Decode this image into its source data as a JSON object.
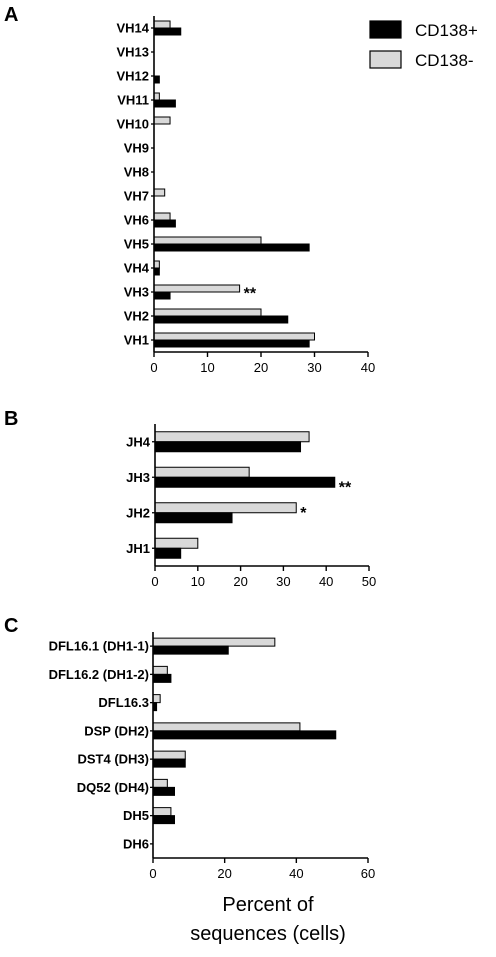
{
  "legend": {
    "entries": [
      {
        "name": "CD138+",
        "color": "#000000"
      },
      {
        "name": "CD138-",
        "color": "#d9d9d9"
      }
    ],
    "placement": "top-right"
  },
  "xlabel": {
    "line1": "Percent of",
    "line2": "sequences (cells)"
  },
  "chart_data": [
    {
      "panel": "A",
      "type": "bar",
      "orientation": "horizontal",
      "categories": [
        "VH14",
        "VH13",
        "VH12",
        "VH11",
        "VH10",
        "VH9",
        "VH8",
        "VH7",
        "VH6",
        "VH5",
        "VH4",
        "VH3",
        "VH2",
        "VH1"
      ],
      "series": [
        {
          "name": "CD138-",
          "color": "#d9d9d9",
          "values": [
            3,
            0,
            0,
            1,
            3,
            0,
            0,
            2,
            3,
            20,
            1,
            16,
            20,
            30
          ]
        },
        {
          "name": "CD138+",
          "color": "#000000",
          "values": [
            5,
            0,
            1,
            4,
            0,
            0,
            0,
            0,
            4,
            29,
            1,
            3,
            25,
            29
          ]
        }
      ],
      "annotations": [
        {
          "category": "VH3",
          "series": "CD138-",
          "text": "**"
        }
      ],
      "xlim": [
        0,
        40
      ],
      "xticks": [
        "0",
        "10",
        "20",
        "30",
        "40"
      ]
    },
    {
      "panel": "B",
      "type": "bar",
      "orientation": "horizontal",
      "categories": [
        "JH4",
        "JH3",
        "JH2",
        "JH1"
      ],
      "series": [
        {
          "name": "CD138-",
          "color": "#d9d9d9",
          "values": [
            36,
            22,
            33,
            10
          ]
        },
        {
          "name": "CD138+",
          "color": "#000000",
          "values": [
            34,
            42,
            18,
            6
          ]
        }
      ],
      "annotations": [
        {
          "category": "JH3",
          "series": "CD138+",
          "text": "**"
        },
        {
          "category": "JH2",
          "series": "CD138-",
          "text": "*"
        }
      ],
      "xlim": [
        0,
        50
      ],
      "xticks": [
        "0",
        "10",
        "20",
        "30",
        "40",
        "50"
      ]
    },
    {
      "panel": "C",
      "type": "bar",
      "orientation": "horizontal",
      "categories": [
        "DFL16.1 (DH1-1)",
        "DFL16.2 (DH1-2)",
        "DFL16.3",
        "DSP (DH2)",
        "DST4 (DH3)",
        "DQ52 (DH4)",
        "DH5",
        "DH6"
      ],
      "series": [
        {
          "name": "CD138-",
          "color": "#d9d9d9",
          "values": [
            34,
            4,
            2,
            41,
            9,
            4,
            5,
            0
          ]
        },
        {
          "name": "CD138+",
          "color": "#000000",
          "values": [
            21,
            5,
            1,
            51,
            9,
            6,
            6,
            0
          ]
        }
      ],
      "annotations": [],
      "xlim": [
        0,
        60
      ],
      "xticks": [
        "0",
        "20",
        "40",
        "60"
      ]
    }
  ]
}
